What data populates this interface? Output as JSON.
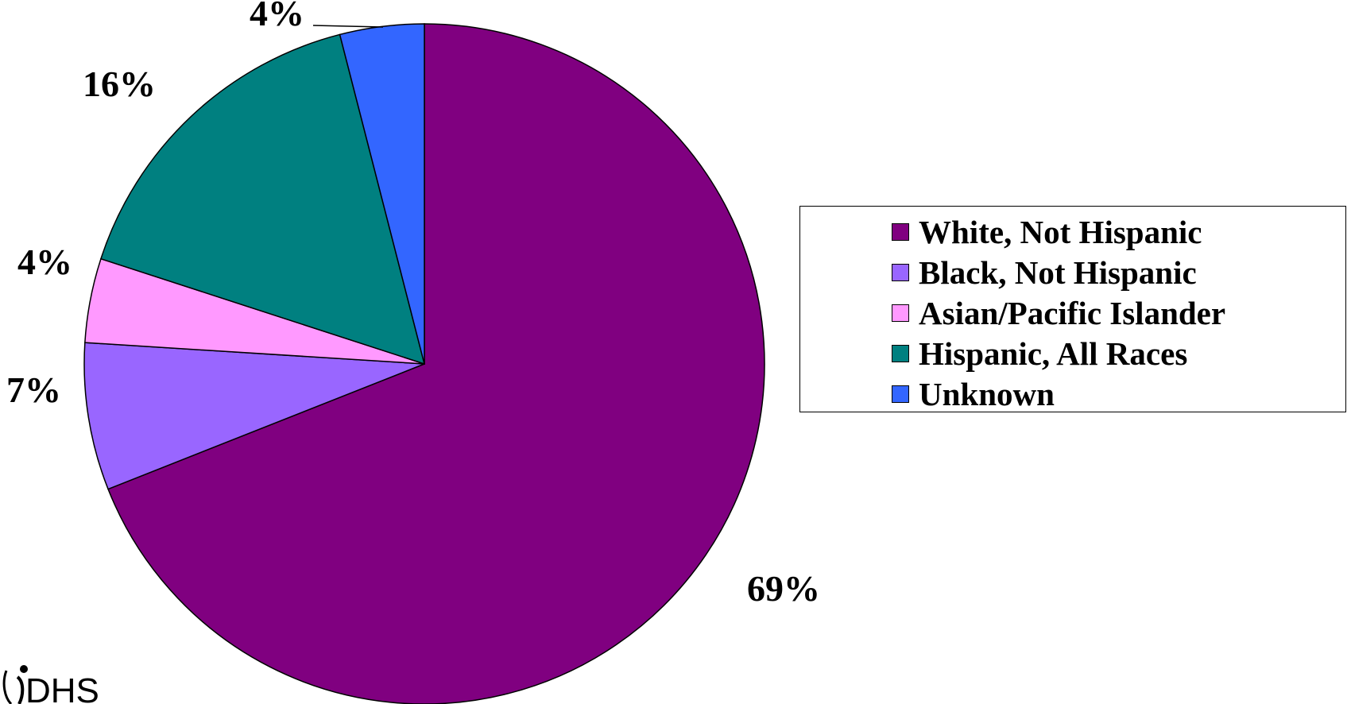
{
  "chart_data": {
    "type": "pie",
    "slices": [
      {
        "label": "White, Not Hispanic",
        "value": 69,
        "display": "69%",
        "color": "#800080"
      },
      {
        "label": "Black, Not Hispanic",
        "value": 7,
        "display": "7%",
        "color": "#9966FF"
      },
      {
        "label": "Asian/Pacific Islander",
        "value": 4,
        "display": "4%",
        "color": "#FF99FF"
      },
      {
        "label": "Hispanic, All Races",
        "value": 16,
        "display": "16%",
        "color": "#008080"
      },
      {
        "label": "Unknown",
        "value": 4,
        "display": "4%",
        "color": "#3366FF"
      }
    ],
    "legend_placement": "right"
  },
  "logo": {
    "text": "DHS"
  }
}
